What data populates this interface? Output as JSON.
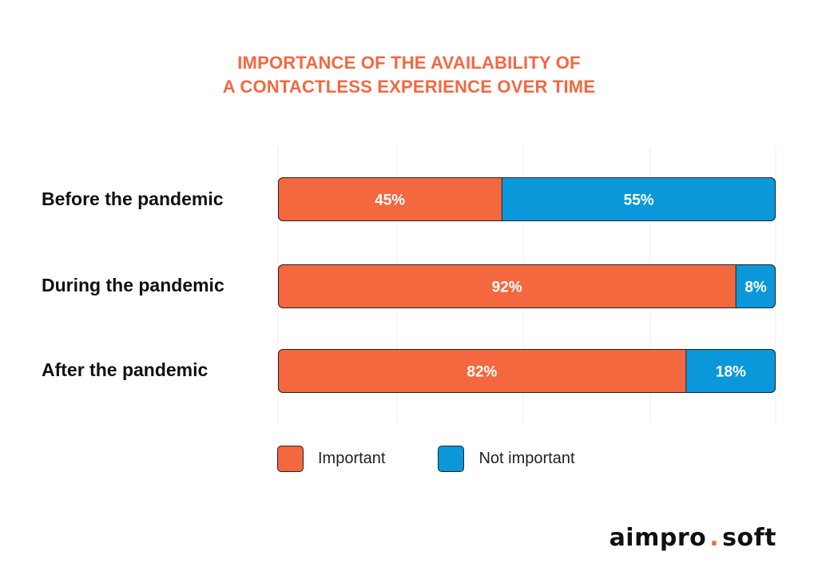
{
  "chart_data": {
    "type": "bar",
    "orientation": "horizontal",
    "stacked": true,
    "title": "IMPORTANCE OF THE AVAILABILITY OF A CONTACTLESS EXPERIENCE OVER TIME",
    "title_lines": [
      "IMPORTANCE OF THE AVAILABILITY OF",
      "A CONTACTLESS EXPERIENCE OVER TIME"
    ],
    "categories": [
      "Before the pandemic",
      "During the pandemic",
      "After the pandemic"
    ],
    "series": [
      {
        "name": "Important",
        "color": "#f4683f",
        "values": [
          45,
          92,
          82
        ],
        "labels": [
          "45%",
          "92%",
          "82%"
        ]
      },
      {
        "name": "Not important",
        "color": "#0a98db",
        "values": [
          55,
          8,
          18
        ],
        "labels": [
          "55%",
          "8%",
          "18%"
        ]
      }
    ],
    "xlim": [
      0,
      100
    ],
    "xlabel": "",
    "ylabel": "",
    "legend_position": "bottom",
    "grid": true
  },
  "logo": {
    "left": "aimpro",
    "dot": ".",
    "right": "soft"
  }
}
